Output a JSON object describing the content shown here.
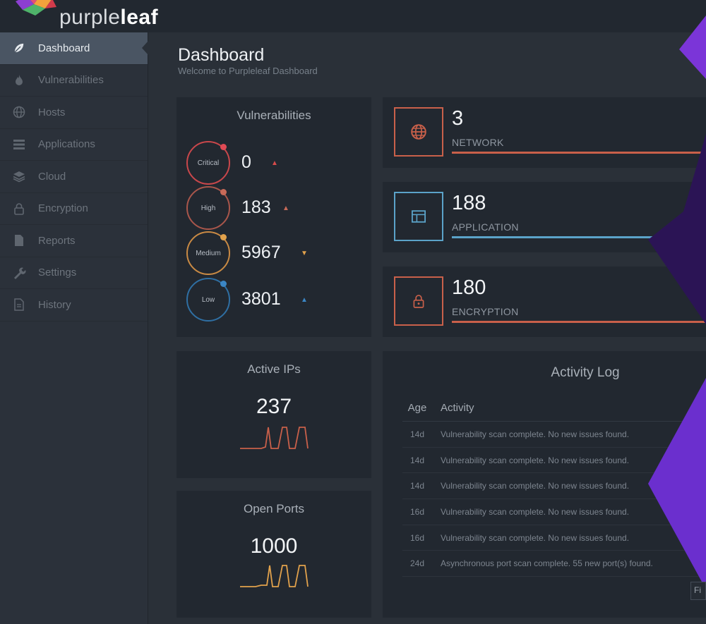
{
  "brand": {
    "light": "purple",
    "bold": "leaf"
  },
  "colors": {
    "critical": "#d64b4b",
    "high": "#c86a58",
    "medium": "#e2a24c",
    "low": "#3b86c4",
    "accent_network": "#d5674f",
    "accent_application": "#5ba3c9",
    "accent_purple": "#6a2fd0"
  },
  "sidebar": {
    "items": [
      {
        "label": "Dashboard",
        "icon": "leaf-icon",
        "active": true
      },
      {
        "label": "Vulnerabilities",
        "icon": "flame-icon"
      },
      {
        "label": "Hosts",
        "icon": "globe-icon"
      },
      {
        "label": "Applications",
        "icon": "list-icon"
      },
      {
        "label": "Cloud",
        "icon": "layers-icon"
      },
      {
        "label": "Encryption",
        "icon": "lock-icon"
      },
      {
        "label": "Reports",
        "icon": "file-icon"
      },
      {
        "label": "Settings",
        "icon": "wrench-icon"
      },
      {
        "label": "History",
        "icon": "history-icon"
      }
    ]
  },
  "header": {
    "title": "Dashboard",
    "subtitle": "Welcome to Purpleleaf Dashboard"
  },
  "vulnerabilities": {
    "title": "Vulnerabilities",
    "levels": [
      {
        "label": "Critical",
        "count": "0",
        "arrow": "▲"
      },
      {
        "label": "High",
        "count": "183",
        "arrow": "▲"
      },
      {
        "label": "Medium",
        "count": "5967",
        "arrow": "▼"
      },
      {
        "label": "Low",
        "count": "3801",
        "arrow": "▲"
      }
    ]
  },
  "stats": [
    {
      "value": "3",
      "label": "NETWORK",
      "icon": "globe-icon"
    },
    {
      "value": "188",
      "label": "APPLICATION",
      "icon": "window-icon"
    },
    {
      "value": "180",
      "label": "ENCRYPTION",
      "icon": "lock-icon"
    }
  ],
  "active_ips": {
    "title": "Active IPs",
    "value": "237"
  },
  "open_ports": {
    "title": "Open Ports",
    "value": "1000"
  },
  "activity_log": {
    "title": "Activity Log",
    "columns": [
      "Age",
      "Activity"
    ],
    "rows": [
      {
        "age": "14d",
        "activity": "Vulnerability scan complete. No new issues found."
      },
      {
        "age": "14d",
        "activity": "Vulnerability scan complete. No new issues found."
      },
      {
        "age": "14d",
        "activity": "Vulnerability scan complete. No new issues found."
      },
      {
        "age": "16d",
        "activity": "Vulnerability scan complete. No new issues found."
      },
      {
        "age": "16d",
        "activity": "Vulnerability scan complete. No new issues found."
      },
      {
        "age": "24d",
        "activity": "Asynchronous port scan complete. 55 new port(s) found."
      }
    ]
  },
  "corner_button": "Fi"
}
